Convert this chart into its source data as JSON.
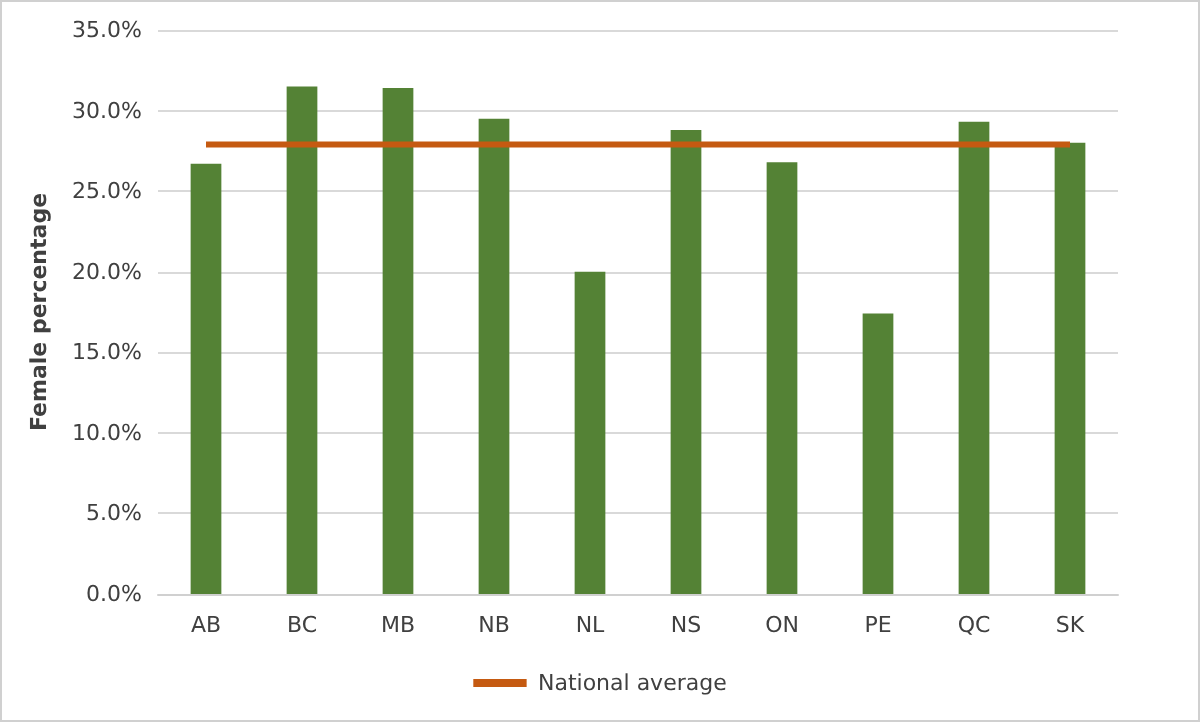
{
  "chart_data": {
    "type": "bar",
    "ylabel": "Female percentage",
    "categories": [
      "AB",
      "BC",
      "MB",
      "NB",
      "NL",
      "NS",
      "ON",
      "PE",
      "QC",
      "SK"
    ],
    "series": [
      {
        "color": "#548235",
        "values": [
          26.7,
          31.5,
          31.4,
          29.5,
          20.0,
          28.8,
          26.8,
          17.4,
          29.3,
          28.0
        ]
      },
      {
        "type": "line",
        "name": "National average",
        "color": "#c55a11",
        "marker": "none",
        "line_style": "solid",
        "values": [
          27.9,
          27.9,
          27.9,
          27.9,
          27.9,
          27.9,
          27.9,
          27.9,
          27.9,
          27.9
        ]
      }
    ],
    "ylim": [
      0,
      35
    ],
    "yticks": [
      {
        "value": 0,
        "label": "0.0%"
      },
      {
        "value": 5,
        "label": "5.0%"
      },
      {
        "value": 10,
        "label": "10.0%"
      },
      {
        "value": 15,
        "label": "15.0%"
      },
      {
        "value": 20,
        "label": "20.0%"
      },
      {
        "value": 25,
        "label": "25.0%"
      },
      {
        "value": 30,
        "label": "30.0%"
      },
      {
        "value": 35,
        "label": "35.0%"
      }
    ],
    "grid": "y",
    "legend": "bottom"
  }
}
